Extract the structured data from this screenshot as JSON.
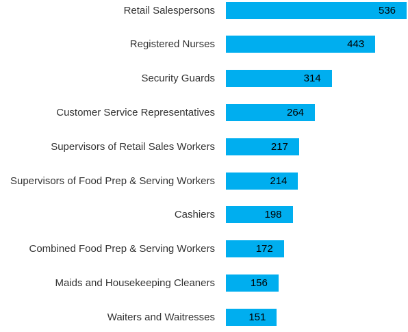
{
  "chart_data": {
    "type": "bar",
    "orientation": "horizontal",
    "categories": [
      "Retail Salespersons",
      "Registered Nurses",
      "Security Guards",
      "Customer Service Representatives",
      "Supervisors of Retail Sales Workers",
      "Supervisors of Food Prep & Serving Workers",
      "Cashiers",
      "Combined Food Prep & Serving Workers",
      "Maids and Housekeeping Cleaners",
      "Waiters and Waitresses"
    ],
    "values": [
      536,
      443,
      314,
      264,
      217,
      214,
      198,
      172,
      156,
      151
    ],
    "color": "#00aeef",
    "xlim": [
      0,
      540
    ]
  }
}
